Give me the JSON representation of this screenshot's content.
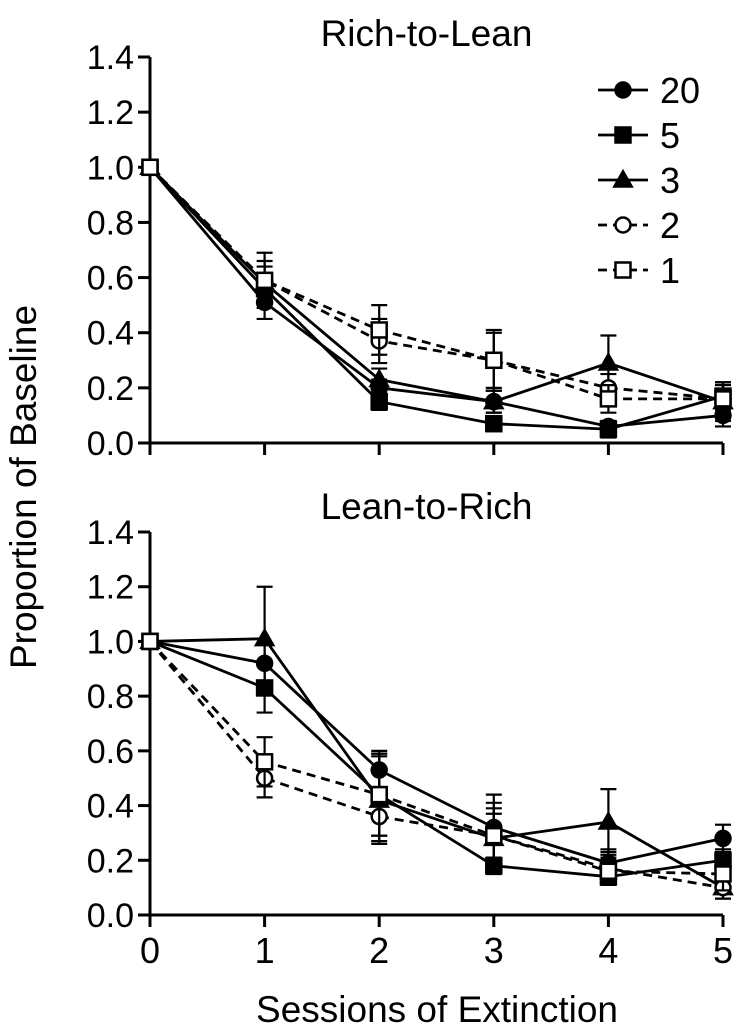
{
  "figure": {
    "ylabel": "Proportion of Baseline",
    "xlabel": "Sessions of Extinction"
  },
  "chart_data": [
    {
      "type": "line",
      "title": "Rich-to-Lean",
      "xlabel": "Sessions of Extinction",
      "ylabel": "Proportion of Baseline",
      "xlim": [
        0,
        5
      ],
      "ylim": [
        0,
        1.4
      ],
      "x_ticks": [
        "0",
        "1",
        "2",
        "3",
        "4",
        "5"
      ],
      "y_ticks": [
        "0.0",
        "0.2",
        "0.4",
        "0.6",
        "0.8",
        "1.0",
        "1.2",
        "1.4"
      ],
      "x": [
        0,
        1,
        2,
        3,
        4,
        5
      ],
      "legend_position": "top-right",
      "series": [
        {
          "name": "20",
          "marker": "filled-circle",
          "dash": "solid",
          "values": [
            1.0,
            0.51,
            0.2,
            0.15,
            0.06,
            0.1
          ],
          "errors": [
            0,
            0.06,
            0.03,
            0.04,
            0.02,
            0.04
          ]
        },
        {
          "name": "5",
          "marker": "filled-square",
          "dash": "solid",
          "values": [
            1.0,
            0.56,
            0.15,
            0.07,
            0.05,
            0.17
          ],
          "errors": [
            0,
            0.05,
            0.03,
            0.02,
            0.03,
            0.05
          ]
        },
        {
          "name": "3",
          "marker": "filled-triangle",
          "dash": "solid",
          "values": [
            1.0,
            0.58,
            0.23,
            0.15,
            0.29,
            0.15
          ],
          "errors": [
            0,
            0.06,
            0.04,
            0.04,
            0.1,
            0.07
          ]
        },
        {
          "name": "2",
          "marker": "open-circle",
          "dash": "dashed",
          "values": [
            1.0,
            0.59,
            0.37,
            0.3,
            0.2,
            0.16
          ],
          "errors": [
            0,
            0.07,
            0.08,
            0.1,
            0.05,
            0.05
          ]
        },
        {
          "name": "1",
          "marker": "open-square",
          "dash": "dashed",
          "values": [
            1.0,
            0.59,
            0.41,
            0.3,
            0.16,
            0.16
          ],
          "errors": [
            0,
            0.1,
            0.09,
            0.11,
            0.05,
            0.06
          ]
        }
      ]
    },
    {
      "type": "line",
      "title": "Lean-to-Rich",
      "xlabel": "Sessions of Extinction",
      "ylabel": "Proportion of Baseline",
      "xlim": [
        0,
        5
      ],
      "ylim": [
        0,
        1.4
      ],
      "x_ticks": [
        "0",
        "1",
        "2",
        "3",
        "4",
        "5"
      ],
      "y_ticks": [
        "0.0",
        "0.2",
        "0.4",
        "0.6",
        "0.8",
        "1.0",
        "1.2",
        "1.4"
      ],
      "x": [
        0,
        1,
        2,
        3,
        4,
        5
      ],
      "series": [
        {
          "name": "20",
          "marker": "filled-circle",
          "dash": "solid",
          "values": [
            1.0,
            0.92,
            0.53,
            0.32,
            0.19,
            0.28
          ],
          "errors": [
            0,
            0.07,
            0.07,
            0.12,
            0.05,
            0.05
          ]
        },
        {
          "name": "5",
          "marker": "filled-square",
          "dash": "solid",
          "values": [
            1.0,
            0.83,
            0.44,
            0.18,
            0.14,
            0.2
          ],
          "errors": [
            0,
            0.09,
            0.15,
            0.03,
            0.03,
            0.04
          ]
        },
        {
          "name": "3",
          "marker": "filled-triangle",
          "dash": "solid",
          "values": [
            1.0,
            1.01,
            0.42,
            0.28,
            0.34,
            0.1
          ],
          "errors": [
            0,
            0.19,
            0.16,
            0.09,
            0.12,
            0.04
          ]
        },
        {
          "name": "2",
          "marker": "open-circle",
          "dash": "dashed",
          "values": [
            1.0,
            0.5,
            0.36,
            0.29,
            0.17,
            0.1
          ],
          "errors": [
            0,
            0.07,
            0.09,
            0.1,
            0.06,
            0.04
          ]
        },
        {
          "name": "1",
          "marker": "open-square",
          "dash": "dashed",
          "values": [
            1.0,
            0.56,
            0.44,
            0.29,
            0.16,
            0.15
          ],
          "errors": [
            0,
            0.09,
            0.15,
            0.12,
            0.05,
            0.06
          ]
        }
      ]
    }
  ]
}
